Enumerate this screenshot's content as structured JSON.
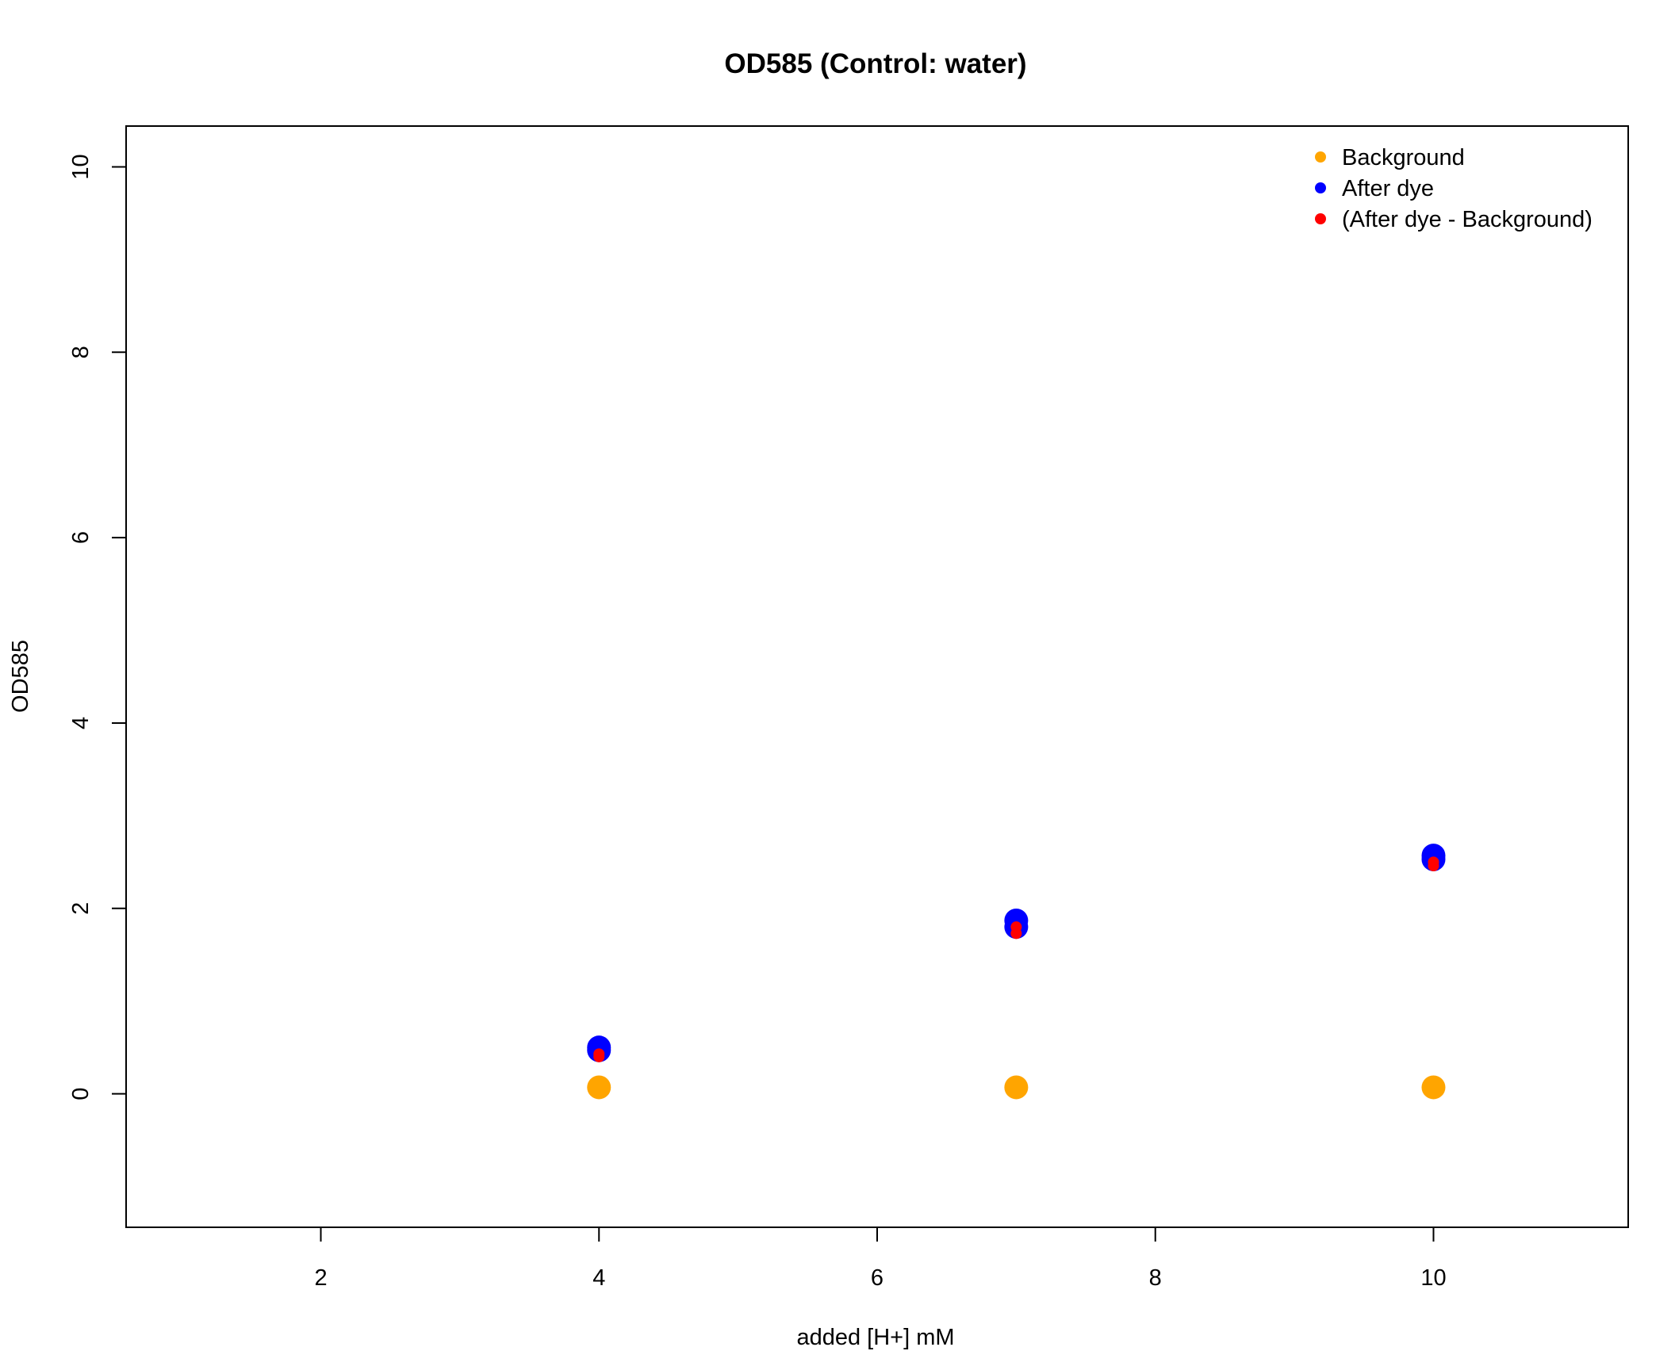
{
  "chart_data": {
    "type": "scatter",
    "title": "OD585 (Control: water)",
    "xlabel": "added [H+] mM",
    "ylabel": "OD585",
    "xlim": [
      0.6,
      11.4
    ],
    "ylim": [
      -1.44,
      10.44
    ],
    "xticks": [
      2,
      4,
      6,
      8,
      10
    ],
    "yticks": [
      0,
      2,
      4,
      6,
      8,
      10
    ],
    "legend_position": "top-right",
    "series": [
      {
        "name": "Background",
        "color": "#FFA500",
        "marker": "large",
        "points": [
          {
            "x": 4,
            "y": 0.07
          },
          {
            "x": 7,
            "y": 0.07
          },
          {
            "x": 10,
            "y": 0.07
          }
        ]
      },
      {
        "name": "After dye",
        "color": "#0000FF",
        "marker": "large",
        "points": [
          {
            "x": 4,
            "y": 0.5
          },
          {
            "x": 4,
            "y": 0.47
          },
          {
            "x": 7,
            "y": 1.87
          },
          {
            "x": 7,
            "y": 1.8
          },
          {
            "x": 10,
            "y": 2.57
          },
          {
            "x": 10,
            "y": 2.53
          }
        ]
      },
      {
        "name": "(After dye - Background)",
        "color": "#FF0000",
        "marker": "small",
        "points": [
          {
            "x": 4,
            "y": 0.43
          },
          {
            "x": 4,
            "y": 0.4
          },
          {
            "x": 7,
            "y": 1.8
          },
          {
            "x": 7,
            "y": 1.73
          },
          {
            "x": 10,
            "y": 2.5
          },
          {
            "x": 10,
            "y": 2.46
          }
        ]
      }
    ]
  }
}
